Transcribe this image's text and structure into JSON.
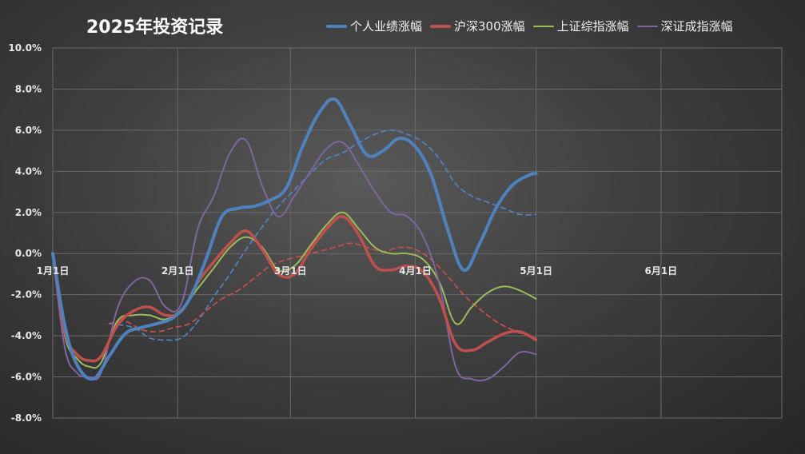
{
  "chart_data": {
    "type": "line",
    "title": "2025年投资记录",
    "x_tick_labels": [
      "1月1日",
      "2月1日",
      "3月1日",
      "4月1日",
      "5月1日",
      "6月1日"
    ],
    "x_tick_days": [
      0,
      31,
      59,
      90,
      120,
      151
    ],
    "xlim_days": [
      0,
      181
    ],
    "ylim": [
      -8.0,
      10.0
    ],
    "y_tick_values": [
      -8,
      -6,
      -4,
      -2,
      0,
      2,
      4,
      6,
      8,
      10
    ],
    "y_tick_labels": [
      "-8.0%",
      "-6.0%",
      "-4.0%",
      "-2.0%",
      "0.0%",
      "2.0%",
      "4.0%",
      "6.0%",
      "8.0%",
      "10.0%"
    ],
    "grid": true,
    "legend_position": "top",
    "series": [
      {
        "name": "个人业绩涨幅",
        "color": "#4f81bd",
        "width": 4,
        "x": [
          0,
          3,
          6,
          10,
          14,
          18,
          22,
          26,
          30,
          34,
          38,
          42,
          46,
          50,
          54,
          58,
          62,
          66,
          70,
          74,
          78,
          82,
          86,
          90,
          94,
          98,
          102,
          106,
          110,
          114,
          118,
          120
        ],
        "y": [
          0.0,
          -3.5,
          -5.4,
          -6.1,
          -5.0,
          -3.9,
          -3.6,
          -3.4,
          -3.1,
          -2.2,
          -0.3,
          1.8,
          2.2,
          2.3,
          2.6,
          3.2,
          5.2,
          6.8,
          7.5,
          6.2,
          4.8,
          5.0,
          5.6,
          5.2,
          3.8,
          1.2,
          -0.8,
          0.5,
          2.2,
          3.3,
          3.8,
          3.9
        ]
      },
      {
        "name": "沪深300涨幅",
        "color": "#c0504d",
        "width": 3.5,
        "x": [
          0,
          3,
          6,
          9,
          12,
          16,
          20,
          24,
          28,
          32,
          36,
          40,
          44,
          48,
          52,
          56,
          60,
          64,
          68,
          72,
          76,
          80,
          84,
          88,
          92,
          96,
          100,
          104,
          108,
          112,
          116,
          120
        ],
        "y": [
          0.0,
          -3.8,
          -4.9,
          -5.2,
          -5.0,
          -3.5,
          -2.8,
          -2.6,
          -3.0,
          -2.8,
          -1.4,
          -0.4,
          0.5,
          1.1,
          0.2,
          -1.0,
          -1.0,
          0.2,
          1.2,
          1.8,
          0.9,
          -0.6,
          -0.8,
          -0.6,
          -0.9,
          -2.2,
          -4.4,
          -4.7,
          -4.3,
          -3.9,
          -3.8,
          -4.2
        ]
      },
      {
        "name": "上证综指涨幅",
        "color": "#9bbb59",
        "width": 2,
        "x": [
          0,
          3,
          6,
          9,
          12,
          16,
          20,
          24,
          28,
          32,
          36,
          40,
          44,
          48,
          52,
          56,
          60,
          64,
          68,
          72,
          76,
          80,
          84,
          88,
          92,
          96,
          100,
          104,
          108,
          112,
          116,
          120
        ],
        "y": [
          0.0,
          -4.0,
          -5.1,
          -5.5,
          -5.3,
          -3.3,
          -3.0,
          -3.0,
          -3.2,
          -2.7,
          -1.7,
          -0.7,
          0.3,
          0.8,
          0.3,
          -0.8,
          -0.6,
          0.4,
          1.4,
          2.0,
          1.2,
          0.3,
          0.0,
          0.0,
          -0.3,
          -1.4,
          -3.4,
          -2.6,
          -1.9,
          -1.6,
          -1.8,
          -2.2
        ]
      },
      {
        "name": "深证成指涨幅",
        "color": "#8064a2",
        "width": 2,
        "x": [
          0,
          3,
          6,
          9,
          12,
          16,
          20,
          24,
          28,
          32,
          36,
          40,
          44,
          48,
          52,
          56,
          60,
          64,
          68,
          72,
          76,
          80,
          84,
          88,
          92,
          96,
          100,
          104,
          108,
          112,
          116,
          120
        ],
        "y": [
          0.0,
          -4.6,
          -5.8,
          -6.0,
          -5.8,
          -2.7,
          -1.4,
          -1.3,
          -2.6,
          -2.4,
          1.2,
          2.8,
          4.9,
          5.5,
          3.3,
          1.8,
          2.8,
          4.0,
          5.1,
          5.4,
          4.3,
          3.0,
          2.0,
          1.8,
          0.8,
          -1.5,
          -5.5,
          -6.1,
          -6.1,
          -5.5,
          -4.8,
          -4.9
        ]
      },
      {
        "color": "#4f81bd",
        "width": 1.8,
        "dashed": true,
        "x": [
          14,
          20,
          24,
          28,
          32,
          36,
          40,
          44,
          48,
          52,
          56,
          60,
          64,
          68,
          72,
          76,
          80,
          84,
          88,
          92,
          96,
          100,
          104,
          108,
          112,
          116,
          120
        ],
        "y": [
          -3.4,
          -3.6,
          -4.1,
          -4.2,
          -4.1,
          -3.3,
          -2.1,
          -1.0,
          0.2,
          1.3,
          2.3,
          3.1,
          3.9,
          4.6,
          4.9,
          5.4,
          5.8,
          6.0,
          5.8,
          5.4,
          4.6,
          3.4,
          2.8,
          2.5,
          2.2,
          1.9,
          1.9
        ]
      },
      {
        "color": "#c0504d",
        "width": 1.8,
        "dashed": true,
        "x": [
          14,
          18,
          22,
          26,
          30,
          34,
          38,
          42,
          46,
          50,
          54,
          58,
          62,
          66,
          70,
          74,
          78,
          82,
          86,
          90,
          94,
          98,
          102,
          106,
          110,
          114,
          118,
          120
        ],
        "y": [
          -3.4,
          -3.3,
          -3.7,
          -3.8,
          -3.6,
          -3.4,
          -2.8,
          -2.2,
          -1.8,
          -1.2,
          -0.6,
          -0.3,
          -0.1,
          0.1,
          0.3,
          0.5,
          0.3,
          0.1,
          0.3,
          0.2,
          -0.3,
          -1.1,
          -2.0,
          -2.7,
          -3.3,
          -3.7,
          -4.0,
          -4.1
        ]
      }
    ]
  }
}
